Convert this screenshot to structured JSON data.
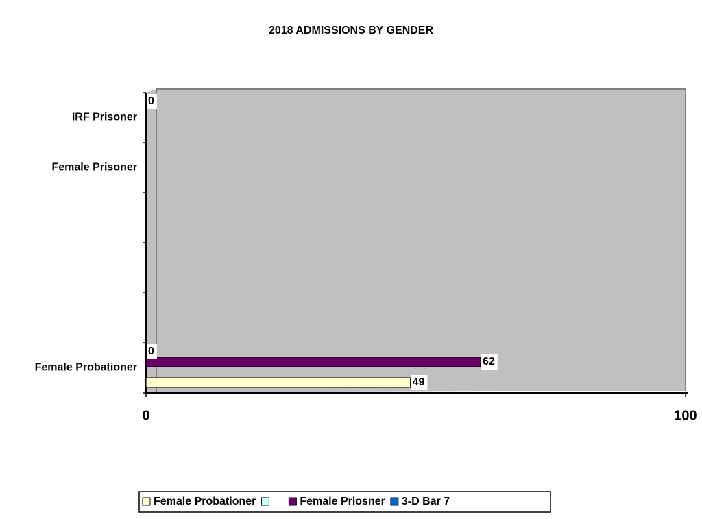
{
  "chart_data": {
    "type": "bar",
    "orientation": "horizontal",
    "title": "2018 ADMISSIONS BY GENDER",
    "categories": [
      "Female Probationer",
      null,
      null,
      null,
      "Female Prisoner",
      "IRF Prisoner"
    ],
    "series": [
      {
        "name": "Female Probationer",
        "color": "#ffffcc",
        "values": [
          49,
          null,
          null,
          null,
          null,
          null
        ]
      },
      {
        "name": null,
        "color": "#ccffff",
        "values": [
          null,
          null,
          null,
          null,
          null,
          null
        ]
      },
      {
        "name": "Female Priosner",
        "color": "#660066",
        "values": [
          62,
          null,
          null,
          null,
          null,
          null
        ]
      },
      {
        "name": "3-D Bar 7",
        "color": "#0066cc",
        "values": [
          0,
          null,
          null,
          null,
          null,
          0
        ]
      }
    ],
    "xlim": [
      0,
      100
    ],
    "xticks": [
      0,
      100
    ],
    "legend": "bottom"
  }
}
